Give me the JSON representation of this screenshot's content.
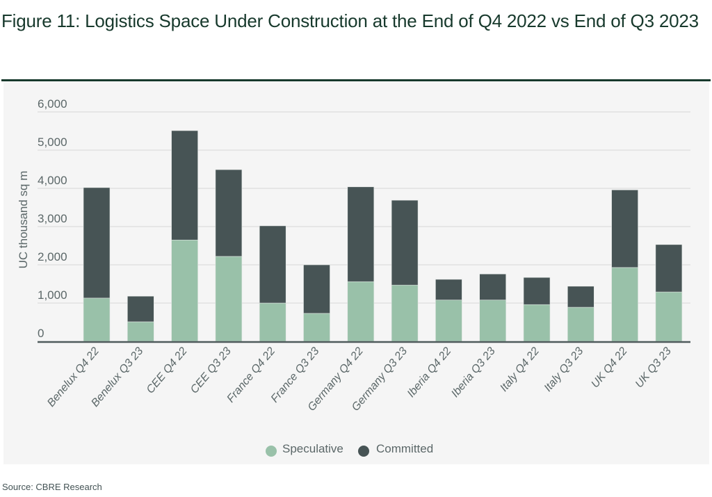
{
  "header": {
    "title": "Figure 11: Logistics Space Under Construction at the End of Q4 2022 vs End of Q3 2023"
  },
  "footer": {
    "source": "Source: CBRE Research"
  },
  "colors": {
    "speculative": "#99c1a9",
    "committed": "#475455",
    "title": "#17392c",
    "text": "#5b6768",
    "grid": "#dedede",
    "axis": "#4f5b5c",
    "panel": "#f5f5f5"
  },
  "chart_data": {
    "type": "bar",
    "stacked": true,
    "title": "Figure 11: Logistics Space Under Construction at the End of Q4 2022 vs End of Q3 2023",
    "xlabel": "",
    "ylabel": "UC thousand sq m",
    "ylim": [
      0,
      6000
    ],
    "yticks": [
      0,
      1000,
      2000,
      3000,
      4000,
      5000,
      6000
    ],
    "ytick_labels": [
      "0",
      "1,000",
      "2,000",
      "3,000",
      "4,000",
      "5,000",
      "6,000"
    ],
    "grid": true,
    "legend_position": "bottom-center",
    "categories": [
      "Benelux Q4 22",
      "Benelux Q3 23",
      "CEE Q4 22",
      "CEE Q3 23",
      "France Q4 22",
      "France Q3 23",
      "Germany Q4 22",
      "Germany Q3 23",
      "Iberia Q4 22",
      "Iberia Q3 23",
      "Italy Q4 22",
      "Italy Q3 23",
      "UK Q4 22",
      "UK Q3 23"
    ],
    "series": [
      {
        "name": "Speculative",
        "values": [
          1130,
          510,
          2650,
          2220,
          1000,
          730,
          1560,
          1470,
          1080,
          1080,
          960,
          890,
          1930,
          1290
        ]
      },
      {
        "name": "Committed",
        "values": [
          2890,
          670,
          2860,
          2270,
          2020,
          1270,
          2480,
          2220,
          540,
          680,
          710,
          550,
          2030,
          1240
        ]
      }
    ]
  }
}
